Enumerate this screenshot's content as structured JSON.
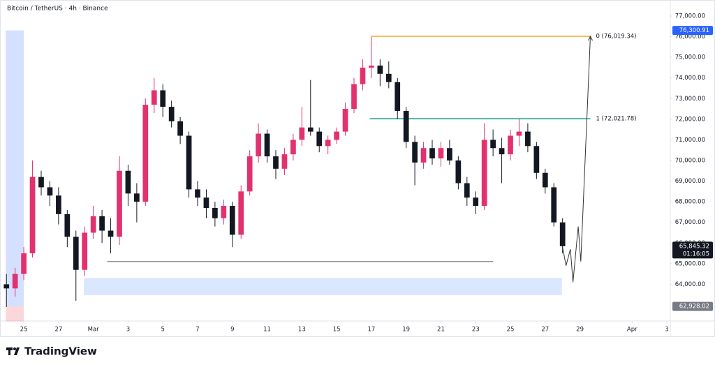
{
  "chart_data": {
    "type": "candlestick",
    "title": "Bitcoin / TetherUS · 4h · Binance",
    "brand": "TradingView",
    "up_color": "#e2316f",
    "down_color": "#131722",
    "xlim": [
      -1.37,
      37.2
    ],
    "ylim": [
      62222,
      77778
    ],
    "xticks": [
      {
        "value": 0,
        "label": "25"
      },
      {
        "value": 2,
        "label": "27"
      },
      {
        "value": 4,
        "label": "Mar"
      },
      {
        "value": 6,
        "label": "3"
      },
      {
        "value": 8,
        "label": "5"
      },
      {
        "value": 10,
        "label": "7"
      },
      {
        "value": 12,
        "label": "9"
      },
      {
        "value": 14,
        "label": "11"
      },
      {
        "value": 16,
        "label": "13"
      },
      {
        "value": 18,
        "label": "15"
      },
      {
        "value": 20,
        "label": "17"
      },
      {
        "value": 22,
        "label": "19"
      },
      {
        "value": 24,
        "label": "21"
      },
      {
        "value": 26,
        "label": "23"
      },
      {
        "value": 28,
        "label": "25"
      },
      {
        "value": 30,
        "label": "27"
      },
      {
        "value": 32,
        "label": "29"
      },
      {
        "value": 35,
        "label": "Apr"
      },
      {
        "value": 37,
        "label": "3"
      }
    ],
    "yticks": [
      {
        "value": 64000,
        "label": "64,000.00"
      },
      {
        "value": 65000,
        "label": "65,000.00"
      },
      {
        "value": 66000,
        "label": "66,000.00"
      },
      {
        "value": 67000,
        "label": "67,000.00"
      },
      {
        "value": 68000,
        "label": "68,000.00"
      },
      {
        "value": 69000,
        "label": "69,000.00"
      },
      {
        "value": 70000,
        "label": "70,000.00"
      },
      {
        "value": 71000,
        "label": "71,000.00"
      },
      {
        "value": 72000,
        "label": "72,000.00"
      },
      {
        "value": 73000,
        "label": "73,000.00"
      },
      {
        "value": 74000,
        "label": "74,000.00"
      },
      {
        "value": 75000,
        "label": "75,000.00"
      },
      {
        "value": 76000,
        "label": "76,000.00"
      },
      {
        "value": 77000,
        "label": "77,000.00"
      }
    ],
    "x": [
      -1,
      -0.5,
      0,
      0.5,
      1,
      1.5,
      2,
      2.5,
      3,
      3.5,
      4,
      4.5,
      5,
      5.5,
      6,
      6.5,
      7,
      7.5,
      8,
      8.5,
      9,
      9.5,
      10,
      10.5,
      11,
      11.5,
      12,
      12.5,
      13,
      13.5,
      14,
      14.5,
      15,
      15.5,
      16,
      16.5,
      17,
      17.5,
      18,
      18.5,
      19,
      19.5,
      20,
      20.5,
      21,
      21.5,
      22,
      22.5,
      23,
      23.5,
      24,
      24.5,
      25,
      25.5,
      26,
      26.5,
      27,
      27.5,
      28,
      28.5,
      29,
      29.5,
      30,
      30.5,
      31
    ],
    "open": [
      64000,
      63800,
      64500,
      65500,
      69200,
      68700,
      68300,
      67400,
      66300,
      64700,
      66500,
      67300,
      66600,
      66300,
      69500,
      68400,
      68000,
      72700,
      73400,
      72600,
      71900,
      71200,
      68600,
      68200,
      67700,
      67200,
      67800,
      66400,
      68500,
      70200,
      71300,
      70200,
      69600,
      70300,
      71000,
      71600,
      71400,
      70700,
      71000,
      71400,
      72500,
      73700,
      74500,
      74600,
      74200,
      73800,
      72400,
      70900,
      69900,
      70600,
      70100,
      70600,
      70000,
      68900,
      68200,
      67800,
      71000,
      70600,
      70300,
      71200,
      71400,
      70700,
      69400,
      68700,
      67000
    ],
    "high": [
      64500,
      64800,
      65800,
      70000,
      69500,
      69000,
      68700,
      67600,
      66600,
      66800,
      67800,
      67600,
      67200,
      70200,
      69800,
      68900,
      73000,
      74000,
      73700,
      72900,
      72100,
      71400,
      69000,
      68600,
      68000,
      68100,
      68000,
      68800,
      70500,
      71800,
      71500,
      70500,
      70600,
      71300,
      72600,
      73900,
      71600,
      71200,
      71600,
      72800,
      74000,
      74900,
      76000,
      74900,
      74800,
      74000,
      72600,
      71200,
      70900,
      71000,
      70900,
      71000,
      70200,
      69200,
      68500,
      71800,
      71500,
      71100,
      71500,
      72000,
      71800,
      70900,
      69600,
      68900,
      67200
    ],
    "low": [
      62900,
      63400,
      64200,
      65300,
      68300,
      67800,
      66900,
      65800,
      63200,
      64400,
      66200,
      66000,
      65500,
      65900,
      67800,
      67000,
      67800,
      72300,
      72100,
      71600,
      70800,
      68200,
      67800,
      67200,
      66800,
      66900,
      65800,
      66200,
      68300,
      69900,
      69900,
      69100,
      69300,
      70000,
      70700,
      71200,
      70400,
      70300,
      70800,
      71200,
      72300,
      73400,
      74000,
      73600,
      73500,
      72000,
      70600,
      68800,
      69600,
      69800,
      69700,
      69800,
      68600,
      67800,
      67400,
      67600,
      70200,
      68900,
      70000,
      70700,
      70400,
      69100,
      68400,
      66800,
      65500
    ],
    "close": [
      63800,
      64500,
      65500,
      69200,
      68700,
      68300,
      67400,
      66300,
      64700,
      66500,
      67300,
      66600,
      66300,
      69500,
      68400,
      68000,
      72700,
      73400,
      72600,
      71900,
      71200,
      68600,
      68200,
      67700,
      67200,
      67800,
      66400,
      68500,
      70200,
      71300,
      70200,
      69600,
      70300,
      71000,
      71600,
      71400,
      70700,
      71000,
      71400,
      72500,
      73700,
      74500,
      74600,
      74200,
      73800,
      72400,
      70900,
      69900,
      70600,
      70100,
      70600,
      70000,
      68900,
      68200,
      67800,
      71000,
      70600,
      70300,
      71200,
      71400,
      70700,
      69400,
      68700,
      67000,
      65845.32
    ],
    "fib_levels": [
      {
        "label": "0 (76,019.34)",
        "value": 76019.34,
        "color": "#f5a623",
        "x": [
          20,
          32.6
        ]
      },
      {
        "label": "1 (72,021.78)",
        "value": 72021.78,
        "color": "#089981",
        "x": [
          19.9,
          32.6
        ]
      }
    ],
    "support_line": {
      "value": 65100,
      "x": [
        4.8,
        27
      ],
      "color": "#555555"
    },
    "demand_zone": {
      "x": [
        3.45,
        30.96
      ],
      "top": 64300,
      "bottom": 63470,
      "color": "#dbe6ff"
    },
    "position": {
      "x": [
        -1.04,
        0
      ],
      "target": 76300.91,
      "entry": 62928.02,
      "stop": 62200
    },
    "projection": {
      "x": [
        31,
        31.2,
        31.45,
        31.6,
        31.9,
        32.05,
        32.6
      ],
      "values": [
        65800,
        64900,
        65700,
        64100,
        66800,
        65100,
        76019.34
      ],
      "color": "#333333"
    },
    "price_labels": [
      {
        "value": 76300.91,
        "label": "76,300.91",
        "color": "#2962ff"
      },
      {
        "value": 65845.32,
        "label": "65,845.32",
        "countdown": "01:16:05",
        "color": "#131722"
      },
      {
        "value": 62928.02,
        "label": "62,928.02",
        "color": "#787b86"
      }
    ]
  }
}
